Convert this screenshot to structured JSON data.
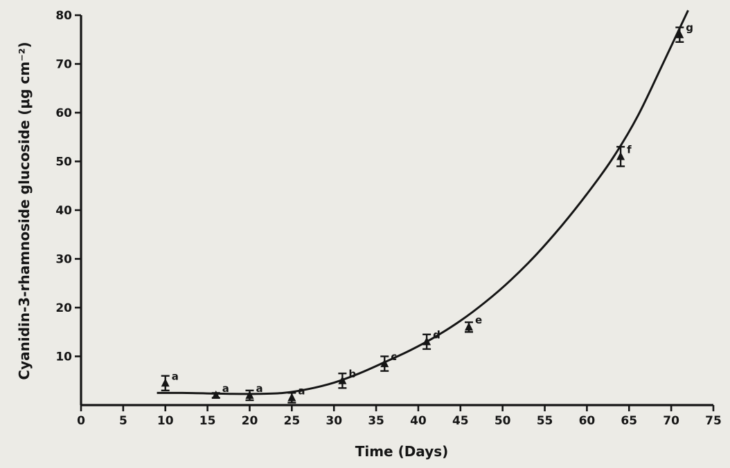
{
  "chart_data": {
    "type": "scatter",
    "title": "",
    "xlabel": "Time (Days)",
    "ylabel": "Cyanidin-3-rhamnoside glucoside (μg cm⁻²)",
    "xlim": [
      0,
      75
    ],
    "ylim": [
      0,
      80
    ],
    "xticks": [
      "0",
      "5",
      "10",
      "15",
      "20",
      "25",
      "30",
      "35",
      "40",
      "45",
      "50",
      "55",
      "60",
      "65",
      "70",
      "75"
    ],
    "yticks": [
      "10",
      "20",
      "30",
      "40",
      "50",
      "60",
      "70",
      "80"
    ],
    "grid": false,
    "legend": "none",
    "series": [
      {
        "marker": "filled",
        "points": [
          {
            "x": 10,
            "y": 4.5,
            "err": 1.5,
            "label": "a"
          },
          {
            "x": 16,
            "y": 2.0,
            "err": 0.5,
            "label": "a"
          },
          {
            "x": 20,
            "y": 2.0,
            "err": 1.0,
            "label": "a"
          },
          {
            "x": 25,
            "y": 1.5,
            "err": 1.0,
            "label": "a"
          },
          {
            "x": 31,
            "y": 5.0,
            "err": 1.5,
            "label": "b"
          },
          {
            "x": 36,
            "y": 8.5,
            "err": 1.5,
            "label": "c"
          },
          {
            "x": 41,
            "y": 13.0,
            "err": 1.5,
            "label": "d"
          },
          {
            "x": 46,
            "y": 16.0,
            "err": 1.0,
            "label": "e"
          },
          {
            "x": 64,
            "y": 51.0,
            "err": 2.0,
            "label": "f"
          },
          {
            "x": 71,
            "y": 76.0,
            "err": 1.5,
            "label": "g"
          }
        ]
      }
    ],
    "fit_curve": {
      "x": [
        9,
        12,
        15,
        18,
        21,
        24,
        27,
        30,
        33,
        36,
        39,
        42,
        45,
        48,
        51,
        54,
        57,
        60,
        63,
        66,
        69,
        72
      ],
      "y": [
        2.5,
        2.5,
        2.4,
        2.3,
        2.3,
        2.5,
        3.3,
        4.6,
        6.5,
        8.8,
        11.2,
        14.0,
        17.3,
        21.2,
        25.7,
        30.9,
        36.8,
        43.3,
        50.5,
        59.2,
        70.0,
        81.0
      ]
    }
  }
}
